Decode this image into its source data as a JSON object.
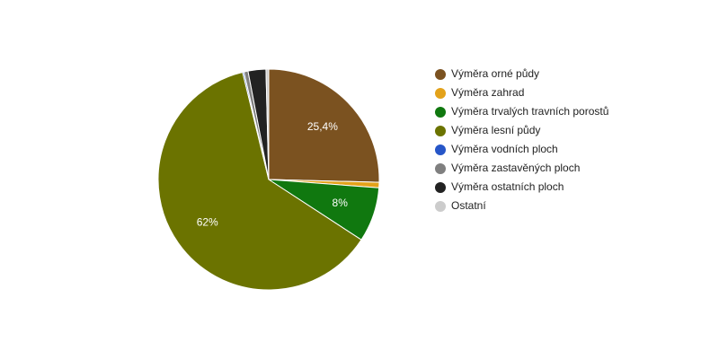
{
  "chart_data": {
    "type": "pie",
    "categories": [
      "Výměra orné půdy",
      "Výměra zahrad",
      "Výměra trvalých travních porostů",
      "Výměra lesní půdy",
      "Výměra vodních ploch",
      "Výměra zastavěných ploch",
      "Výměra ostatních ploch",
      "Ostatní"
    ],
    "values": [
      25.4,
      0.8,
      8,
      62,
      0.2,
      0.6,
      2.6,
      0.4
    ],
    "value_labels": [
      "25,4%",
      null,
      "8%",
      "62%",
      null,
      null,
      null,
      null
    ],
    "colors": [
      "#7b5220",
      "#e3a21a",
      "#10780f",
      "#6b7300",
      "#2656c8",
      "#7f7f7f",
      "#222222",
      "#cccccc"
    ],
    "legend": "right"
  }
}
